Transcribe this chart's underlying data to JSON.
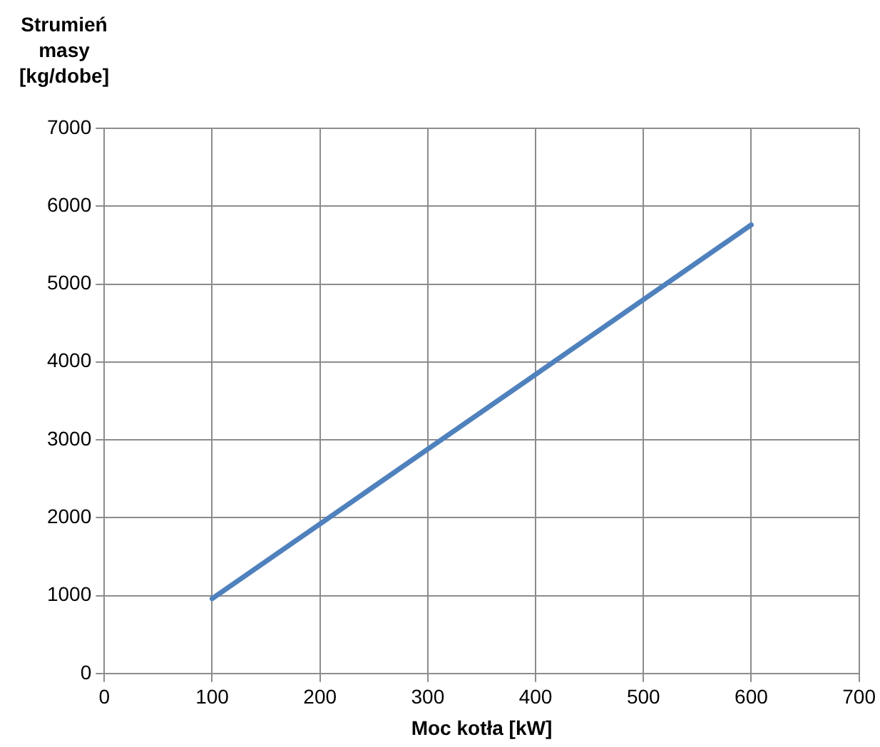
{
  "chart_data": {
    "type": "line",
    "ylabel": "Strumień masy [kg/dobe]",
    "xlabel": "Moc kotła [kW]",
    "x": [
      100,
      200,
      300,
      400,
      500,
      600
    ],
    "series": [
      {
        "color": "#4f81bd",
        "values": [
          960,
          1920,
          2880,
          3840,
          4800,
          5760
        ]
      }
    ],
    "xlim": [
      0,
      700
    ],
    "xticks": [
      0,
      100,
      200,
      300,
      400,
      500,
      600,
      700
    ],
    "ylim": [
      0,
      7000
    ],
    "yticks": [
      0,
      1000,
      2000,
      3000,
      4000,
      5000,
      6000,
      7000
    ],
    "grid": true,
    "legend": false,
    "marker": "none",
    "line_style": "solid"
  }
}
